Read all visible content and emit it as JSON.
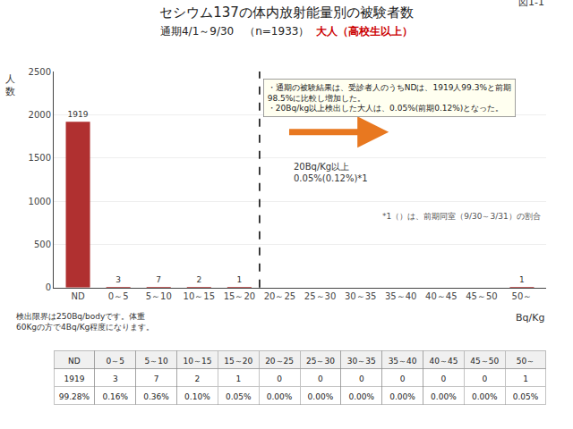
{
  "chart_data": [
    {
      "type": "bar",
      "title": "セシウム137の体内放射能量別の被験者数",
      "subtitle": "通期4/1～9/30　（n=1933）",
      "subtitle_highlight": {
        "text": "大人（高校生以上）",
        "color": "#cc0000"
      },
      "figure_label": "図1-1",
      "ylabel": "人\n数",
      "xlabel": "Bq/Kg",
      "categories": [
        "ND",
        "0～5",
        "5～10",
        "10～15",
        "15～20",
        "20～25",
        "25～30",
        "30～35",
        "35～40",
        "40～45",
        "45～50",
        "50～"
      ],
      "values": [
        1919,
        3,
        7,
        2,
        1,
        0,
        0,
        0,
        0,
        0,
        0,
        1
      ],
      "value_labels": [
        "1919",
        "3",
        "7",
        "2",
        "1",
        null,
        null,
        null,
        null,
        null,
        null,
        "1"
      ],
      "color": "#b03030",
      "ylim": [
        0,
        2500
      ],
      "yticks": [
        0,
        500,
        1000,
        1500,
        2000,
        2500
      ],
      "grid": true,
      "data_labels": true,
      "reference_line": {
        "x": 4.5,
        "line_style": "dashed"
      },
      "arrow": {
        "text": "20Bq/Kg以上\n0.05%(0.12%)*1",
        "color": "#e87820"
      },
      "note": "*1（）は、前期同室（9/30～3/31）の割合",
      "callout": "・通期の被験結果は、受診者人のうちNDは、1919人99.3%と前期\n98.5%に比較し増加した。\n・20Bq/kg以上検出した大人は、0.05%(前期0.12%)となった。",
      "bottom_note": "検出限界は250Bq/bodyです。体重\n60Kgの方で4Bq/Kg程度になります。"
    },
    {
      "type": "table",
      "header": [
        "ND",
        "0～5",
        "5～10",
        "10～15",
        "15～20",
        "20～25",
        "25～30",
        "30～35",
        "35～40",
        "40～45",
        "45～50",
        "50～"
      ],
      "rows": [
        [
          "1919",
          "3",
          "7",
          "2",
          "1",
          "0",
          "0",
          "0",
          "0",
          "0",
          "0",
          "1"
        ],
        [
          "99.28%",
          "0.16%",
          "0.36%",
          "0.10%",
          "0.05%",
          "0.00%",
          "0.00%",
          "0.00%",
          "0.00%",
          "0.00%",
          "0.00%",
          "0.05%"
        ]
      ]
    }
  ]
}
